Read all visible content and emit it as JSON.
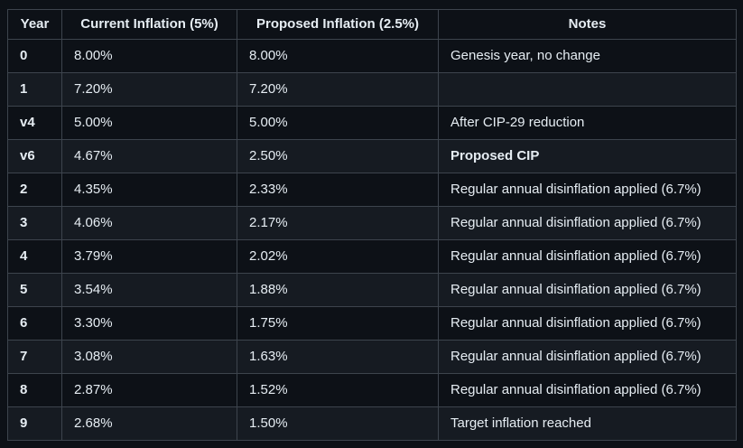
{
  "theme": {
    "page_background": "#0d1117",
    "row_alt_background": "#161b22",
    "border_color": "#3d444d",
    "text_color": "#e6edf3"
  },
  "chart_data": {
    "type": "table",
    "columns": [
      {
        "key": "year",
        "label": "Year"
      },
      {
        "key": "current",
        "label": "Current Inflation (5%)"
      },
      {
        "key": "proposed",
        "label": "Proposed Inflation (2.5%)"
      },
      {
        "key": "notes",
        "label": "Notes"
      }
    ],
    "rows": [
      {
        "year": "0",
        "current": "8.00%",
        "proposed": "8.00%",
        "notes": "Genesis year, no change",
        "notes_bold": false
      },
      {
        "year": "1",
        "current": "7.20%",
        "proposed": "7.20%",
        "notes": "",
        "notes_bold": false
      },
      {
        "year": "v4",
        "current": "5.00%",
        "proposed": "5.00%",
        "notes": "After CIP-29 reduction",
        "notes_bold": false
      },
      {
        "year": "v6",
        "current": "4.67%",
        "proposed": "2.50%",
        "notes": "Proposed CIP",
        "notes_bold": true
      },
      {
        "year": "2",
        "current": "4.35%",
        "proposed": "2.33%",
        "notes": "Regular annual disinflation applied (6.7%)",
        "notes_bold": false
      },
      {
        "year": "3",
        "current": "4.06%",
        "proposed": "2.17%",
        "notes": "Regular annual disinflation applied (6.7%)",
        "notes_bold": false
      },
      {
        "year": "4",
        "current": "3.79%",
        "proposed": "2.02%",
        "notes": "Regular annual disinflation applied (6.7%)",
        "notes_bold": false
      },
      {
        "year": "5",
        "current": "3.54%",
        "proposed": "1.88%",
        "notes": "Regular annual disinflation applied (6.7%)",
        "notes_bold": false
      },
      {
        "year": "6",
        "current": "3.30%",
        "proposed": "1.75%",
        "notes": "Regular annual disinflation applied (6.7%)",
        "notes_bold": false
      },
      {
        "year": "7",
        "current": "3.08%",
        "proposed": "1.63%",
        "notes": "Regular annual disinflation applied (6.7%)",
        "notes_bold": false
      },
      {
        "year": "8",
        "current": "2.87%",
        "proposed": "1.52%",
        "notes": "Regular annual disinflation applied (6.7%)",
        "notes_bold": false
      },
      {
        "year": "9",
        "current": "2.68%",
        "proposed": "1.50%",
        "notes": "Target inflation reached",
        "notes_bold": false
      }
    ]
  }
}
